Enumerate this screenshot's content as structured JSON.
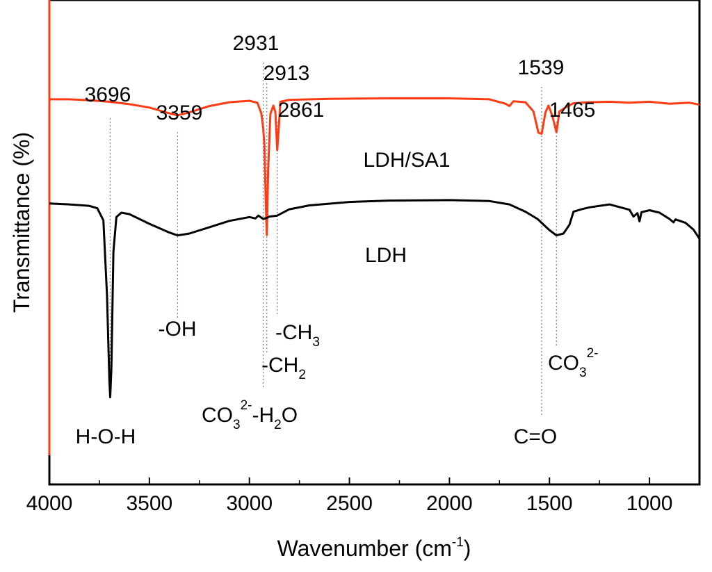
{
  "chart_data": {
    "type": "line",
    "xlabel": "Wavenumber (cm-1)",
    "xlabel_main": "Wavenumber (cm",
    "xlabel_sup": "-1",
    "xlabel_end": ")",
    "ylabel": "Transmittance (%)",
    "xlim": [
      4000,
      750
    ],
    "x_reversed": true,
    "x_ticks": [
      4000,
      3500,
      3000,
      2500,
      2000,
      1500,
      1000
    ],
    "y_ticks": false,
    "grid": false,
    "legend": "none",
    "peak_markers": [
      3696,
      3359,
      2931,
      2913,
      2861,
      1539,
      1465
    ],
    "peak_labels": [
      {
        "text": "3696",
        "x": 3696
      },
      {
        "text": "3359",
        "x": 3359
      },
      {
        "text": "2931",
        "x": 2931
      },
      {
        "text": "2913",
        "x": 2913
      },
      {
        "text": "2861",
        "x": 2861
      },
      {
        "text": "1539",
        "x": 1539
      },
      {
        "text": "1465",
        "x": 1465
      }
    ],
    "assignments": [
      {
        "text": "H-O-H",
        "x": 3696
      },
      {
        "text": "-OH",
        "x": 3359
      },
      {
        "text": "CO32--H2O",
        "x": 2931
      },
      {
        "text": "-CH2",
        "x": 2913
      },
      {
        "text": "-CH3",
        "x": 2861
      },
      {
        "text": "C=O",
        "x": 1539
      },
      {
        "text": "CO32-",
        "x": 1465
      }
    ],
    "series": [
      {
        "name": "LDH/SA1",
        "color": "#ff3b14",
        "points": [
          [
            4000,
            0.795
          ],
          [
            3900,
            0.795
          ],
          [
            3800,
            0.793
          ],
          [
            3700,
            0.79
          ],
          [
            3600,
            0.785
          ],
          [
            3500,
            0.778
          ],
          [
            3450,
            0.772
          ],
          [
            3400,
            0.766
          ],
          [
            3359,
            0.762
          ],
          [
            3300,
            0.768
          ],
          [
            3200,
            0.781
          ],
          [
            3100,
            0.789
          ],
          [
            3000,
            0.792
          ],
          [
            2960,
            0.788
          ],
          [
            2940,
            0.765
          ],
          [
            2931,
            0.736
          ],
          [
            2925,
            0.7
          ],
          [
            2918,
            0.58
          ],
          [
            2913,
            0.515
          ],
          [
            2906,
            0.65
          ],
          [
            2895,
            0.765
          ],
          [
            2880,
            0.782
          ],
          [
            2870,
            0.768
          ],
          [
            2861,
            0.69
          ],
          [
            2855,
            0.725
          ],
          [
            2845,
            0.79
          ],
          [
            2800,
            0.794
          ],
          [
            2600,
            0.796
          ],
          [
            2300,
            0.797
          ],
          [
            2000,
            0.797
          ],
          [
            1800,
            0.795
          ],
          [
            1720,
            0.786
          ],
          [
            1700,
            0.781
          ],
          [
            1680,
            0.791
          ],
          [
            1620,
            0.789
          ],
          [
            1580,
            0.77
          ],
          [
            1555,
            0.726
          ],
          [
            1539,
            0.724
          ],
          [
            1520,
            0.768
          ],
          [
            1505,
            0.782
          ],
          [
            1485,
            0.76
          ],
          [
            1465,
            0.727
          ],
          [
            1450,
            0.77
          ],
          [
            1420,
            0.778
          ],
          [
            1380,
            0.787
          ],
          [
            1300,
            0.789
          ],
          [
            1200,
            0.79
          ],
          [
            1100,
            0.788
          ],
          [
            1000,
            0.79
          ],
          [
            900,
            0.786
          ],
          [
            800,
            0.788
          ],
          [
            750,
            0.784
          ]
        ]
      },
      {
        "name": "LDH",
        "color": "#000000",
        "points": [
          [
            4000,
            0.58
          ],
          [
            3900,
            0.578
          ],
          [
            3800,
            0.575
          ],
          [
            3760,
            0.57
          ],
          [
            3730,
            0.545
          ],
          [
            3712,
            0.39
          ],
          [
            3700,
            0.215
          ],
          [
            3696,
            0.18
          ],
          [
            3690,
            0.24
          ],
          [
            3680,
            0.48
          ],
          [
            3665,
            0.552
          ],
          [
            3640,
            0.561
          ],
          [
            3600,
            0.558
          ],
          [
            3500,
            0.538
          ],
          [
            3400,
            0.52
          ],
          [
            3359,
            0.514
          ],
          [
            3300,
            0.518
          ],
          [
            3200,
            0.531
          ],
          [
            3100,
            0.544
          ],
          [
            3000,
            0.552
          ],
          [
            2970,
            0.549
          ],
          [
            2955,
            0.555
          ],
          [
            2931,
            0.548
          ],
          [
            2913,
            0.55
          ],
          [
            2900,
            0.553
          ],
          [
            2861,
            0.555
          ],
          [
            2800,
            0.568
          ],
          [
            2700,
            0.576
          ],
          [
            2500,
            0.583
          ],
          [
            2300,
            0.586
          ],
          [
            2000,
            0.587
          ],
          [
            1800,
            0.585
          ],
          [
            1700,
            0.578
          ],
          [
            1620,
            0.563
          ],
          [
            1560,
            0.548
          ],
          [
            1539,
            0.54
          ],
          [
            1500,
            0.525
          ],
          [
            1465,
            0.514
          ],
          [
            1430,
            0.518
          ],
          [
            1400,
            0.536
          ],
          [
            1380,
            0.563
          ],
          [
            1340,
            0.568
          ],
          [
            1300,
            0.572
          ],
          [
            1200,
            0.578
          ],
          [
            1100,
            0.567
          ],
          [
            1080,
            0.553
          ],
          [
            1060,
            0.56
          ],
          [
            1050,
            0.543
          ],
          [
            1040,
            0.562
          ],
          [
            1000,
            0.566
          ],
          [
            950,
            0.561
          ],
          [
            900,
            0.548
          ],
          [
            880,
            0.541
          ],
          [
            870,
            0.547
          ],
          [
            820,
            0.54
          ],
          [
            780,
            0.526
          ],
          [
            750,
            0.507
          ]
        ]
      }
    ]
  },
  "labels": {
    "ldh_sa1": "LDH/SA1",
    "ldh": "LDH"
  }
}
